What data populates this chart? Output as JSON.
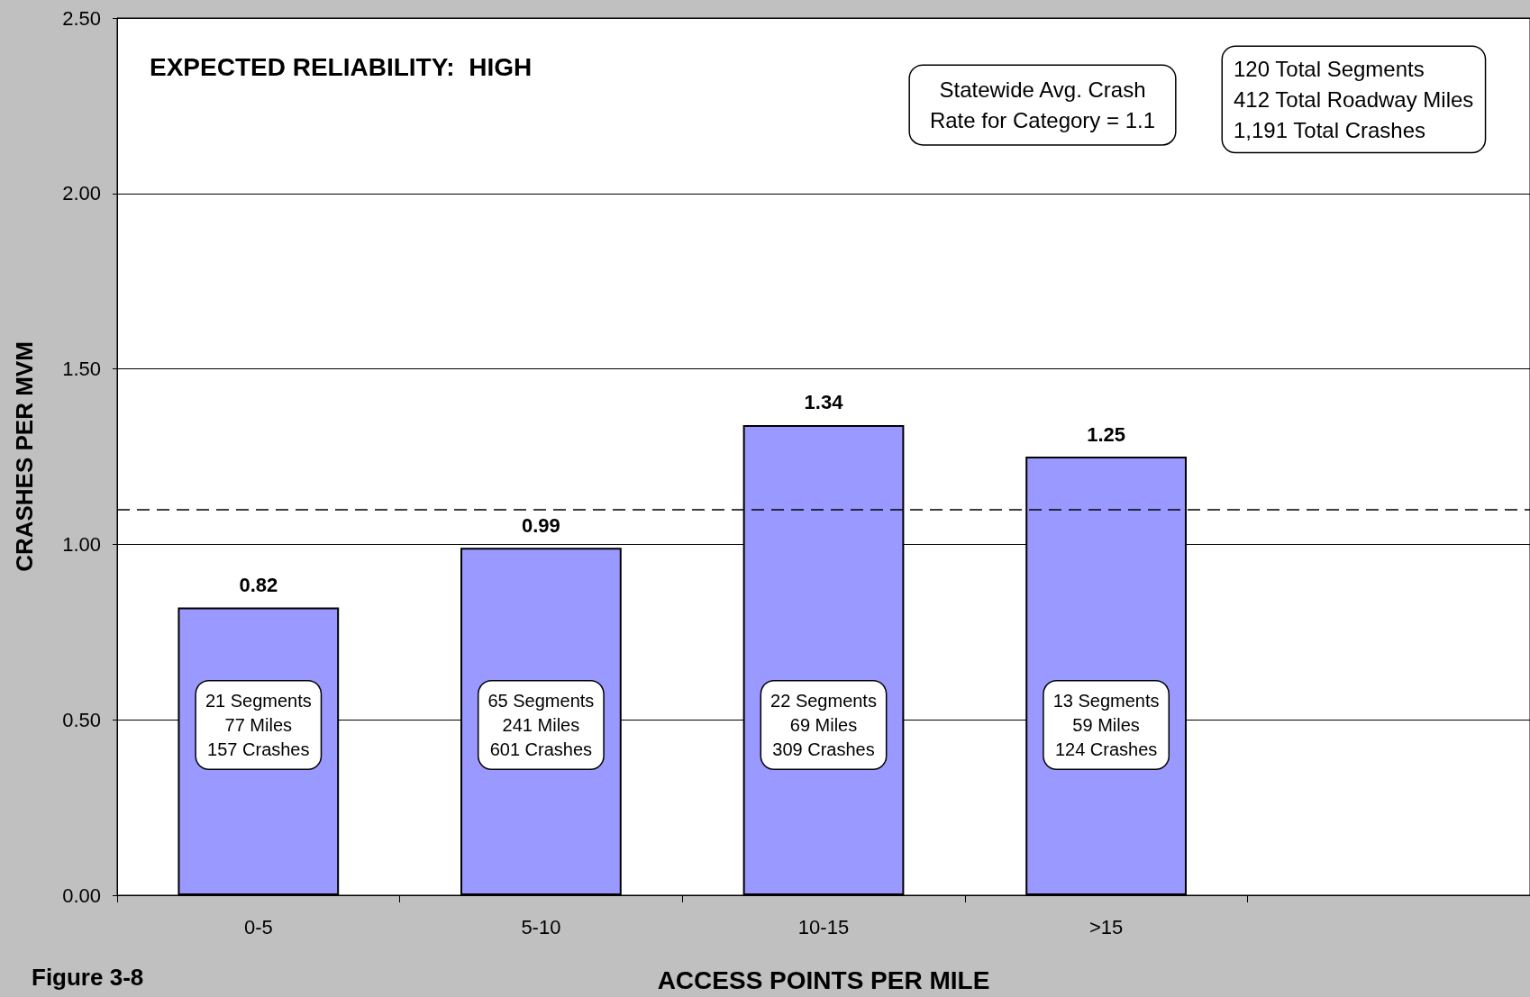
{
  "chart_data": {
    "type": "bar",
    "title": "EXPECTED RELIABILITY:  HIGH",
    "xlabel": "ACCESS POINTS PER MILE",
    "ylabel": "CRASHES PER MVM",
    "categories": [
      "0-5",
      "5-10",
      "10-15",
      ">15",
      null
    ],
    "values": [
      0.82,
      0.99,
      1.34,
      1.25,
      null
    ],
    "color": "#9999ff",
    "data_labels": true,
    "ylim": [
      0,
      2.5
    ],
    "yticks": [
      {
        "value": 0,
        "label": "0.00"
      },
      {
        "value": 0.5,
        "label": "0.50"
      },
      {
        "value": 1,
        "label": "1.00"
      },
      {
        "value": 1.5,
        "label": "1.50"
      },
      {
        "value": 2,
        "label": "2.00"
      },
      {
        "value": 2.5,
        "label": "2.50"
      }
    ],
    "grid": "y",
    "ref_lines": [
      {
        "axis": "y",
        "value": 1.1,
        "label": "Statewide Avg. Crash\nRate for Category = 1.1",
        "color": "#000000",
        "line_style": "dashed"
      }
    ],
    "annotations": [
      "120 Total Segments\n412 Total Roadway Miles\n1,191 Total Crashes",
      "Figure 3-8",
      "21 Segments\n77 Miles\n157 Crashes",
      "65 Segments\n241 Miles\n601 Crashes",
      "22 Segments\n69 Miles\n309 Crashes",
      "13 Segments\n59 Miles\n124 Crashes"
    ]
  }
}
